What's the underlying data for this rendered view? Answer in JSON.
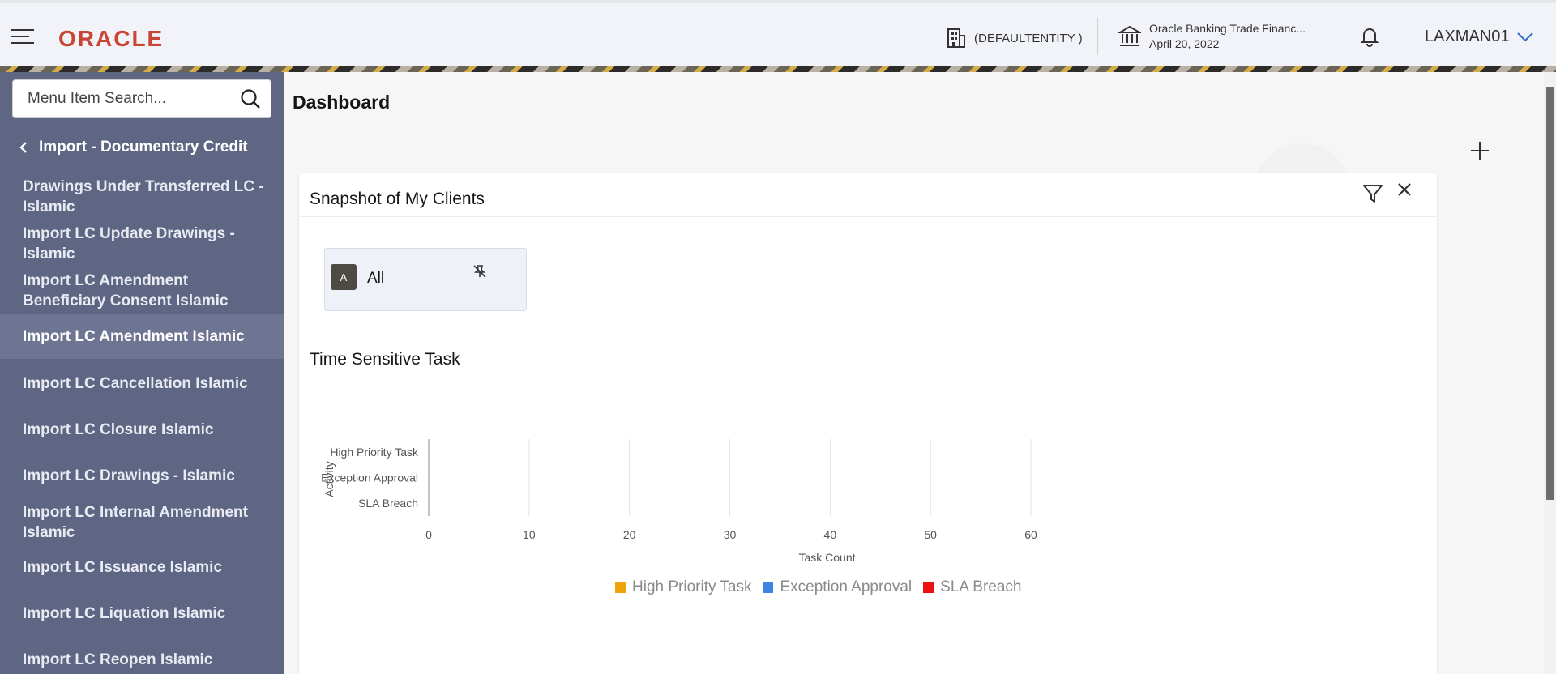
{
  "header": {
    "logo": "ORACLE",
    "entity": "(DEFAULTENTITY )",
    "bank_name": "Oracle Banking Trade Financ...",
    "date": "April 20, 2022",
    "user": "LAXMAN01"
  },
  "sidebar": {
    "search_placeholder": "Menu Item Search...",
    "back_label": "Import - Documentary Credit",
    "items": [
      {
        "label": "Drawings Under Transferred LC - Islamic"
      },
      {
        "label": "Import LC Update Drawings - Islamic"
      },
      {
        "label": "Import LC Amendment Beneficiary Consent Islamic"
      },
      {
        "label": "Import LC Amendment Islamic",
        "active": true
      },
      {
        "label": "Import LC Cancellation Islamic"
      },
      {
        "label": "Import LC Closure Islamic"
      },
      {
        "label": "Import LC Drawings - Islamic"
      },
      {
        "label": "Import LC Internal Amendment Islamic"
      },
      {
        "label": "Import LC Issuance Islamic"
      },
      {
        "label": "Import LC Liquation Islamic"
      },
      {
        "label": "Import LC Reopen Islamic"
      }
    ]
  },
  "main": {
    "title": "Dashboard",
    "card": {
      "title": "Snapshot of My Clients",
      "client": {
        "initial": "A",
        "label": "All"
      },
      "section_title": "Time Sensitive Task"
    }
  },
  "chart_data": {
    "type": "bar",
    "orientation": "horizontal",
    "categories": [
      "High Priority Task",
      "Exception Approval",
      "SLA Breach"
    ],
    "series": [
      {
        "name": "High Priority Task",
        "values": [
          0,
          0,
          0
        ],
        "color": "#f0a30a"
      },
      {
        "name": "Exception Approval",
        "values": [
          0,
          0,
          0
        ],
        "color": "#3b86e0"
      },
      {
        "name": "SLA Breach",
        "values": [
          0,
          0,
          0
        ],
        "color": "#ee1111"
      }
    ],
    "xlabel": "Task Count",
    "ylabel": "Activity",
    "xticks": [
      0,
      10,
      20,
      30,
      40,
      50,
      60
    ],
    "xlim": [
      0,
      60
    ],
    "grid": true,
    "legend": "bottom"
  },
  "colors": {
    "sidebar_bg": "#5f6684",
    "brand": "#c74634"
  }
}
